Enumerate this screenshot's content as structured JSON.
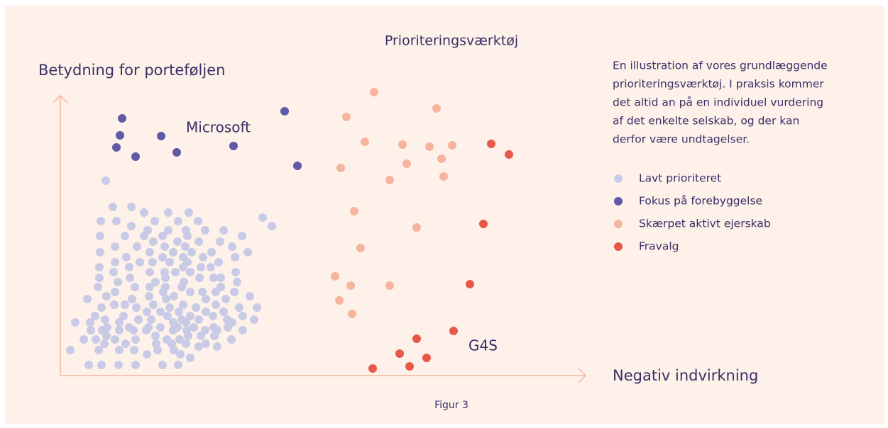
{
  "chart_data": {
    "type": "scatter",
    "title": "Prioriteringsværktøj",
    "y_label": "Betydning for porteføljen",
    "x_label": "Negativ indvirkning",
    "annotations": [
      "Microsoft",
      "G4S"
    ],
    "caption": "Figur 3",
    "description_lines": [
      "En illustration af vores grundlæggende",
      "prioriteringsværktøj. I praksis kommer",
      "det altid an på en individuel vurdering",
      "af det enkelte selskab, og der kan",
      "derfor være undtagelser."
    ],
    "xlim": [
      0,
      740
    ],
    "ylim": [
      0,
      395
    ],
    "axis_color": "#f5b59a",
    "series": [
      {
        "name": "Lavt prioriteret",
        "color": "#c9cbe6",
        "x": [
          64,
          74,
          100,
          118,
          152,
          181,
          285,
          57,
          79,
          133,
          166,
          194,
          100,
          298,
          123,
          152,
          177,
          204,
          230,
          56,
          91,
          118,
          144,
          179,
          256,
          131,
          165,
          195,
          225,
          77,
          108,
          147,
          176,
          242,
          56,
          126,
          159,
          185,
          213,
          264,
          93,
          144,
          173,
          201,
          246,
          77,
          112,
          130,
          154,
          179,
          223,
          55,
          97,
          173,
          198,
          212,
          75,
          126,
          147,
          162,
          183,
          247,
          55,
          98,
          148,
          196,
          216,
          226,
          81,
          134,
          174,
          249,
          53,
          105,
          126,
          148,
          171,
          226,
          77,
          145,
          183,
          200,
          219,
          245,
          65,
          125,
          160,
          267,
          38,
          101,
          149,
          205,
          233,
          76,
          91,
          131,
          173,
          219,
          58,
          107,
          154,
          191,
          252,
          277,
          122,
          141,
          167,
          205,
          230,
          49,
          89,
          151,
          183,
          215,
          257,
          63,
          110,
          128,
          171,
          195,
          235,
          273,
          21,
          42,
          83,
          159,
          177,
          242,
          66,
          97,
          124,
          141,
          165,
          188,
          216,
          236,
          43,
          59,
          83,
          103,
          121,
          159,
          178,
          204,
          221,
          257,
          65,
          134,
          180,
          198,
          217,
          33,
          50,
          77,
          106,
          150,
          168,
          241,
          62,
          92,
          135,
          157,
          177,
          205,
          195,
          221,
          14,
          54,
          83,
          104,
          137,
          160,
          122,
          169,
          183,
          40,
          58,
          82,
          106,
          144,
          166
        ],
        "values": [
          275,
          238,
          238,
          230,
          230,
          230,
          223,
          218,
          218,
          218,
          218,
          218,
          211,
          211,
          205,
          205,
          205,
          205,
          205,
          197,
          197,
          197,
          197,
          197,
          197,
          189,
          189,
          189,
          189,
          182,
          182,
          182,
          182,
          182,
          174,
          174,
          174,
          174,
          174,
          174,
          167,
          167,
          167,
          167,
          167,
          160,
          160,
          160,
          160,
          160,
          160,
          153,
          153,
          153,
          153,
          153,
          146,
          146,
          146,
          146,
          146,
          146,
          138,
          138,
          138,
          138,
          138,
          138,
          132,
          132,
          132,
          132,
          125,
          125,
          125,
          125,
          125,
          125,
          118,
          118,
          118,
          118,
          118,
          118,
          112,
          112,
          112,
          112,
          108,
          108,
          108,
          108,
          108,
          100,
          100,
          100,
          100,
          100,
          96,
          96,
          96,
          96,
          96,
          96,
          90,
          90,
          90,
          90,
          90,
          84,
          84,
          84,
          84,
          84,
          84,
          79,
          79,
          79,
          79,
          79,
          79,
          79,
          75,
          75,
          75,
          75,
          75,
          75,
          68,
          68,
          68,
          68,
          68,
          68,
          68,
          68,
          64,
          64,
          64,
          64,
          64,
          64,
          64,
          64,
          64,
          64,
          56,
          56,
          56,
          56,
          56,
          51,
          51,
          51,
          51,
          51,
          51,
          51,
          45,
          45,
          45,
          45,
          45,
          45,
          41,
          41,
          36,
          36,
          36,
          36,
          36,
          36,
          30,
          30,
          25,
          15,
          15,
          15,
          15,
          15,
          15
        ]
      },
      {
        "name": "Fokus på forebyggelse",
        "color": "#6159a6",
        "x": [
          87,
          84,
          142,
          79,
          106,
          164,
          244,
          316,
          334
        ],
        "values": [
          363,
          339,
          338,
          322,
          309,
          315,
          324,
          373,
          296
        ]
      },
      {
        "name": "Skærpet aktivt ejerskab",
        "color": "#f6b49c",
        "x": [
          442,
          530,
          403,
          429,
          482,
          520,
          552,
          537,
          395,
          488,
          464,
          540,
          414,
          502,
          423,
          387,
          409,
          464,
          393,
          411
        ],
        "values": [
          400,
          377,
          365,
          330,
          326,
          323,
          325,
          306,
          293,
          299,
          276,
          281,
          232,
          209,
          180,
          140,
          127,
          127,
          106,
          87
        ]
      },
      {
        "name": "Fravalg",
        "color": "#e8574a",
        "x": [
          607,
          632,
          596,
          577,
          554,
          502,
          478,
          516,
          492,
          440
        ],
        "values": [
          327,
          312,
          214,
          129,
          63,
          52,
          31,
          25,
          13,
          10
        ]
      }
    ]
  }
}
